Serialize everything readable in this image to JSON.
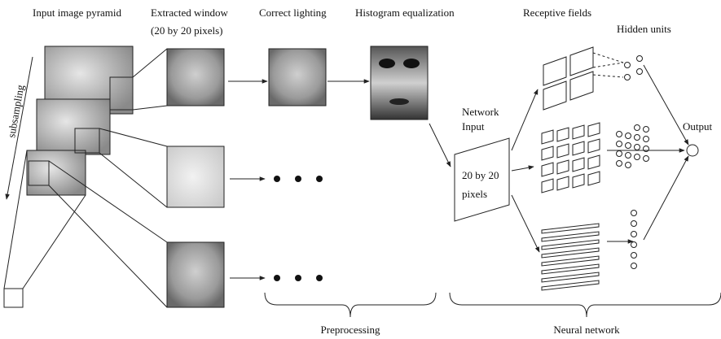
{
  "labels": {
    "pyramid": "Input image pyramid",
    "window_line1": "Extracted window",
    "window_line2": "(20 by 20 pixels)",
    "lighting": "Correct lighting",
    "histogram": "Histogram equalization",
    "receptive": "Receptive fields",
    "hidden": "Hidden units",
    "subsampling": "subsampling",
    "network_line1": "Network",
    "network_line2": "Input",
    "input_line1": "20 by 20",
    "input_line2": "pixels",
    "output": "Output",
    "preprocessing": "Preprocessing",
    "neural": "Neural network"
  }
}
